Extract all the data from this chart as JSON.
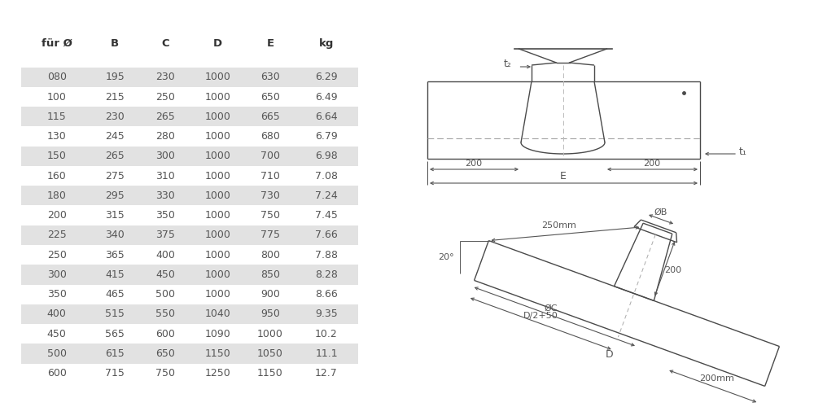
{
  "bg_color": "#ffffff",
  "table_headers": [
    "für Ø",
    "B",
    "C",
    "D",
    "E",
    "kg"
  ],
  "table_data": [
    [
      "080",
      "195",
      "230",
      "1000",
      "630",
      "6.29"
    ],
    [
      "100",
      "215",
      "250",
      "1000",
      "650",
      "6.49"
    ],
    [
      "115",
      "230",
      "265",
      "1000",
      "665",
      "6.64"
    ],
    [
      "130",
      "245",
      "280",
      "1000",
      "680",
      "6.79"
    ],
    [
      "150",
      "265",
      "300",
      "1000",
      "700",
      "6.98"
    ],
    [
      "160",
      "275",
      "310",
      "1000",
      "710",
      "7.08"
    ],
    [
      "180",
      "295",
      "330",
      "1000",
      "730",
      "7.24"
    ],
    [
      "200",
      "315",
      "350",
      "1000",
      "750",
      "7.45"
    ],
    [
      "225",
      "340",
      "375",
      "1000",
      "775",
      "7.66"
    ],
    [
      "250",
      "365",
      "400",
      "1000",
      "800",
      "7.88"
    ],
    [
      "300",
      "415",
      "450",
      "1000",
      "850",
      "8.28"
    ],
    [
      "350",
      "465",
      "500",
      "1000",
      "900",
      "8.66"
    ],
    [
      "400",
      "515",
      "550",
      "1040",
      "950",
      "9.35"
    ],
    [
      "450",
      "565",
      "600",
      "1090",
      "1000",
      "10.2"
    ],
    [
      "500",
      "615",
      "650",
      "1150",
      "1050",
      "11.1"
    ],
    [
      "600",
      "715",
      "750",
      "1250",
      "1150",
      "12.7"
    ]
  ],
  "shaded_rows": [
    0,
    2,
    4,
    6,
    8,
    10,
    12,
    14
  ],
  "shade_color": "#e2e2e2",
  "text_color": "#555555",
  "header_color": "#333333",
  "line_color": "#4a4a4a",
  "dim_color": "#555555"
}
